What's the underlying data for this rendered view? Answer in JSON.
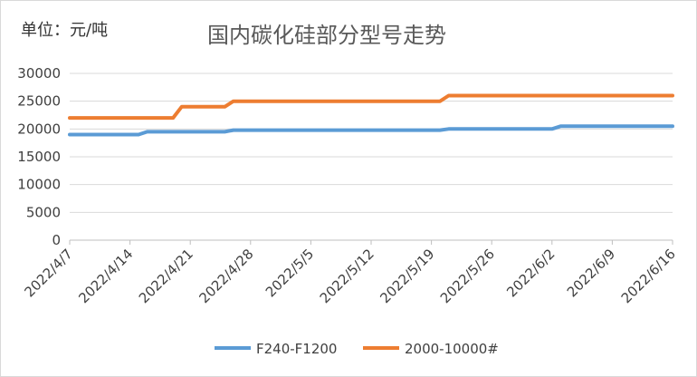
{
  "unit_label": "单位：元/吨",
  "chart_data": {
    "type": "line",
    "title": "国内碳化硅部分型号走势",
    "xlabel": "",
    "ylabel": "单位：元/吨",
    "ylim": [
      0,
      30000
    ],
    "yticks": [
      0,
      5000,
      10000,
      15000,
      20000,
      25000,
      30000
    ],
    "x_tick_labels": [
      "2022/4/7",
      "2022/4/14",
      "2022/4/21",
      "2022/4/28",
      "2022/5/5",
      "2022/5/12",
      "2022/5/19",
      "2022/5/26",
      "2022/6/2",
      "2022/6/9",
      "2022/6/16"
    ],
    "grid": true,
    "legend_position": "bottom",
    "x": [
      "2022/4/7",
      "2022/4/15",
      "2022/4/16",
      "2022/4/19",
      "2022/4/20",
      "2022/4/25",
      "2022/4/26",
      "2022/5/20",
      "2022/5/21",
      "2022/6/2",
      "2022/6/3",
      "2022/6/16"
    ],
    "series": [
      {
        "name": "F240-F1200",
        "color": "#5b9bd5",
        "values": [
          19000,
          19000,
          19500,
          19500,
          19500,
          19500,
          19800,
          19800,
          20000,
          20000,
          20500,
          20500
        ]
      },
      {
        "name": "2000-10000#",
        "color": "#ed7d31",
        "values": [
          22000,
          22000,
          22000,
          22000,
          24000,
          24000,
          25000,
          25000,
          26000,
          26000,
          26000,
          26000
        ]
      }
    ]
  },
  "legend": {
    "series1_label": "F240-F1200",
    "series2_label": "2000-10000#"
  }
}
